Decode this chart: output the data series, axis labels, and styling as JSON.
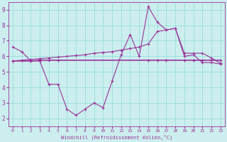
{
  "bg_color": "#cceeee",
  "grid_color": "#99dddd",
  "line_color": "#993399",
  "xlabel": "Windchill (Refroidissement éolien,°C)",
  "xlim": [
    -0.5,
    23.5
  ],
  "ylim": [
    1.5,
    9.5
  ],
  "yticks": [
    2,
    3,
    4,
    5,
    6,
    7,
    8,
    9
  ],
  "xticks": [
    0,
    1,
    2,
    3,
    4,
    5,
    6,
    7,
    8,
    9,
    10,
    11,
    12,
    13,
    14,
    15,
    16,
    17,
    18,
    19,
    20,
    21,
    22,
    23
  ],
  "line1_x": [
    0,
    1,
    2,
    3,
    4,
    5,
    6,
    7,
    8,
    9,
    10,
    11,
    12,
    13,
    14,
    15,
    16,
    17,
    18,
    19,
    20,
    21,
    22,
    23
  ],
  "line1_y": [
    6.6,
    6.3,
    5.7,
    5.7,
    4.2,
    4.2,
    2.6,
    2.2,
    2.6,
    3.0,
    2.7,
    4.4,
    6.1,
    7.4,
    6.0,
    9.2,
    8.2,
    7.7,
    7.8,
    6.0,
    6.1,
    5.6,
    5.6,
    5.5
  ],
  "line2_x": [
    0,
    2,
    3,
    4,
    5,
    15,
    16,
    17,
    19,
    20,
    21,
    22,
    23
  ],
  "line2_y": [
    5.7,
    5.7,
    5.75,
    5.75,
    5.75,
    5.75,
    5.75,
    5.75,
    5.75,
    5.75,
    5.75,
    5.75,
    5.75
  ],
  "line3_x": [
    0,
    1,
    2,
    3,
    4,
    5,
    6,
    7,
    8,
    9,
    10,
    11,
    12,
    13,
    14,
    15,
    16,
    17,
    18,
    19,
    20,
    21,
    22,
    23
  ],
  "line3_y": [
    5.7,
    5.75,
    5.8,
    5.85,
    5.9,
    5.95,
    6.0,
    6.05,
    6.1,
    6.2,
    6.25,
    6.3,
    6.4,
    6.5,
    6.6,
    6.8,
    7.6,
    7.7,
    7.8,
    6.2,
    6.2,
    6.2,
    5.9,
    5.55
  ]
}
